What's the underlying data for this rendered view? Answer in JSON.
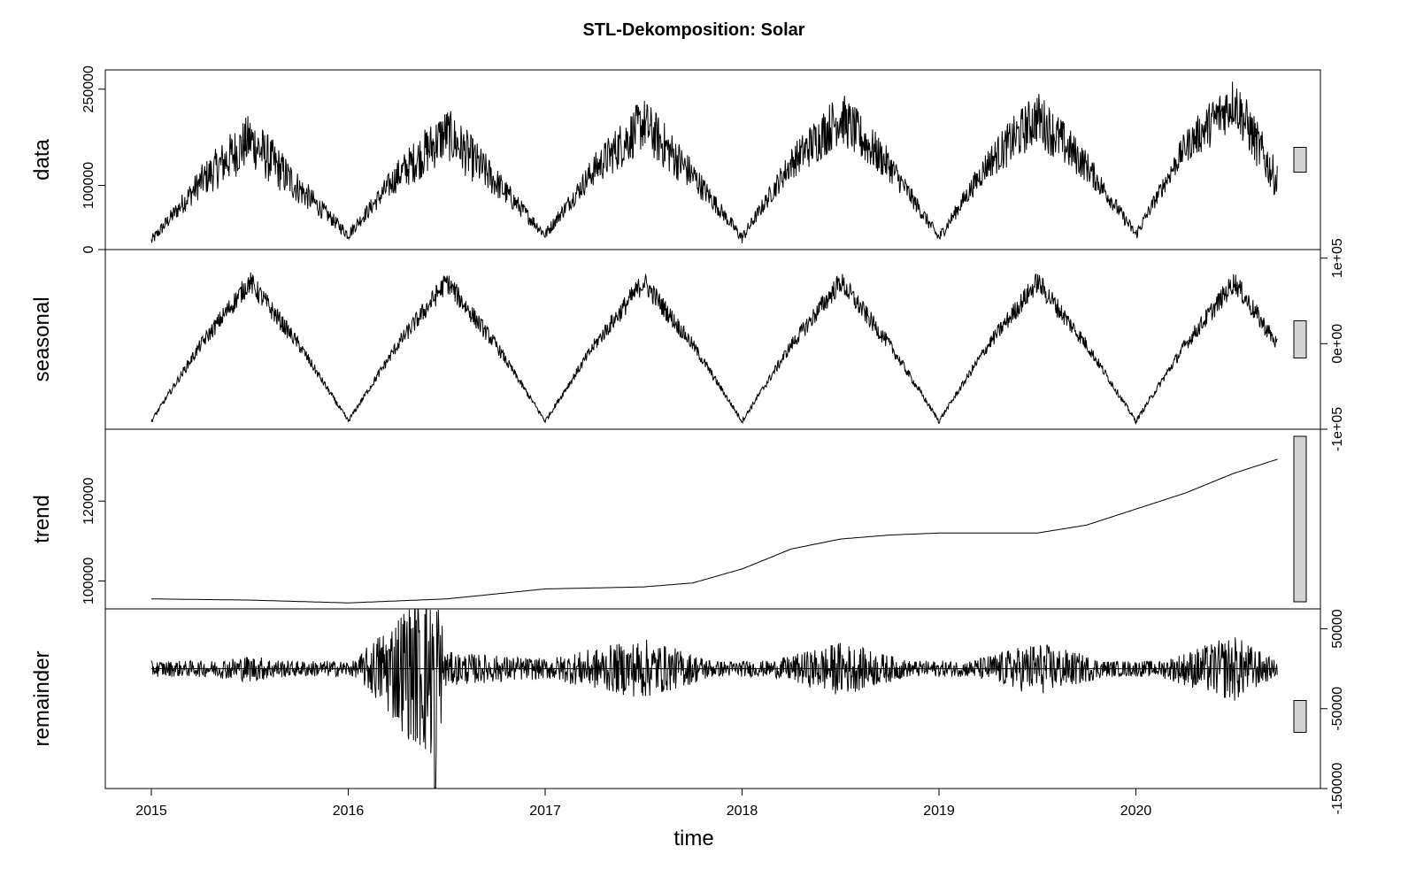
{
  "chart_data": {
    "type": "line",
    "title": "STL-Dekomposition: Solar",
    "xlabel": "time",
    "xlim": [
      2015,
      2020.75
    ],
    "x_ticks": [
      "2015",
      "2016",
      "2017",
      "2018",
      "2019",
      "2020"
    ],
    "panels": [
      {
        "name": "data",
        "ylim": [
          0,
          280000
        ],
        "y_ticks": [
          0,
          100000,
          250000
        ],
        "tick_side": "left",
        "series": [
          {
            "t": [
              2015.0,
              2015.25,
              2015.5,
              2015.75,
              2016.0,
              2016.25,
              2016.5,
              2016.75,
              2017.0,
              2017.25,
              2017.5,
              2017.75,
              2018.0,
              2018.25,
              2018.5,
              2018.75,
              2019.0,
              2019.25,
              2019.5,
              2019.75,
              2020.0,
              2020.25,
              2020.5,
              2020.72
            ],
            "y": [
              15000,
              110000,
              180000,
              100000,
              25000,
              120000,
              190000,
              110000,
              25000,
              130000,
              205000,
              120000,
              20000,
              140000,
              215000,
              135000,
              20000,
              140000,
              215000,
              135000,
              25000,
              165000,
              240000,
              110000
            ]
          }
        ]
      },
      {
        "name": "seasonal",
        "ylim": [
          -100000,
          110000
        ],
        "y_ticks": [
          "-1e+05",
          "0e+00",
          "1e+05"
        ],
        "tick_side": "right",
        "series": [
          {
            "t": [
              2015.0,
              2015.25,
              2015.5,
              2015.75,
              2016.0,
              2016.25,
              2016.5,
              2016.75,
              2017.0,
              2017.25,
              2017.5,
              2017.75,
              2018.0,
              2018.25,
              2018.5,
              2018.75,
              2019.0,
              2019.25,
              2019.5,
              2019.75,
              2020.0,
              2020.25,
              2020.5,
              2020.72
            ],
            "y": [
              -90000,
              0,
              75000,
              0,
              -90000,
              0,
              75000,
              0,
              -90000,
              0,
              75000,
              0,
              -90000,
              0,
              75000,
              0,
              -90000,
              0,
              75000,
              0,
              -90000,
              0,
              75000,
              0
            ]
          }
        ]
      },
      {
        "name": "trend",
        "ylim": [
          93000,
          138000
        ],
        "y_ticks": [
          100000,
          120000
        ],
        "tick_side": "left",
        "series": [
          {
            "t": [
              2015.0,
              2015.5,
              2016.0,
              2016.5,
              2017.0,
              2017.5,
              2017.75,
              2018.0,
              2018.25,
              2018.5,
              2018.75,
              2019.0,
              2019.25,
              2019.5,
              2019.75,
              2020.0,
              2020.25,
              2020.5,
              2020.72
            ],
            "y": [
              95500,
              95200,
              94500,
              95500,
              98000,
              98500,
              99500,
              103000,
              108000,
              110500,
              111500,
              112000,
              112000,
              112000,
              114000,
              118000,
              122000,
              127000,
              130500
            ]
          }
        ]
      },
      {
        "name": "remainder",
        "ylim": [
          -150000,
          75000
        ],
        "y_ticks": [
          -150000,
          -50000,
          50000
        ],
        "tick_side": "right",
        "series": [
          {
            "t": [
              2015.0,
              2015.5,
              2016.0,
              2016.44,
              2016.5,
              2017.0,
              2017.5,
              2018.0,
              2018.5,
              2019.0,
              2019.5,
              2020.0,
              2020.5,
              2020.72
            ],
            "y": [
              0,
              20000,
              0,
              -150000,
              25000,
              -15000,
              45000,
              0,
              40000,
              0,
              40000,
              0,
              50000,
              10000
            ]
          }
        ]
      }
    ],
    "grid": false,
    "legend": "none"
  }
}
